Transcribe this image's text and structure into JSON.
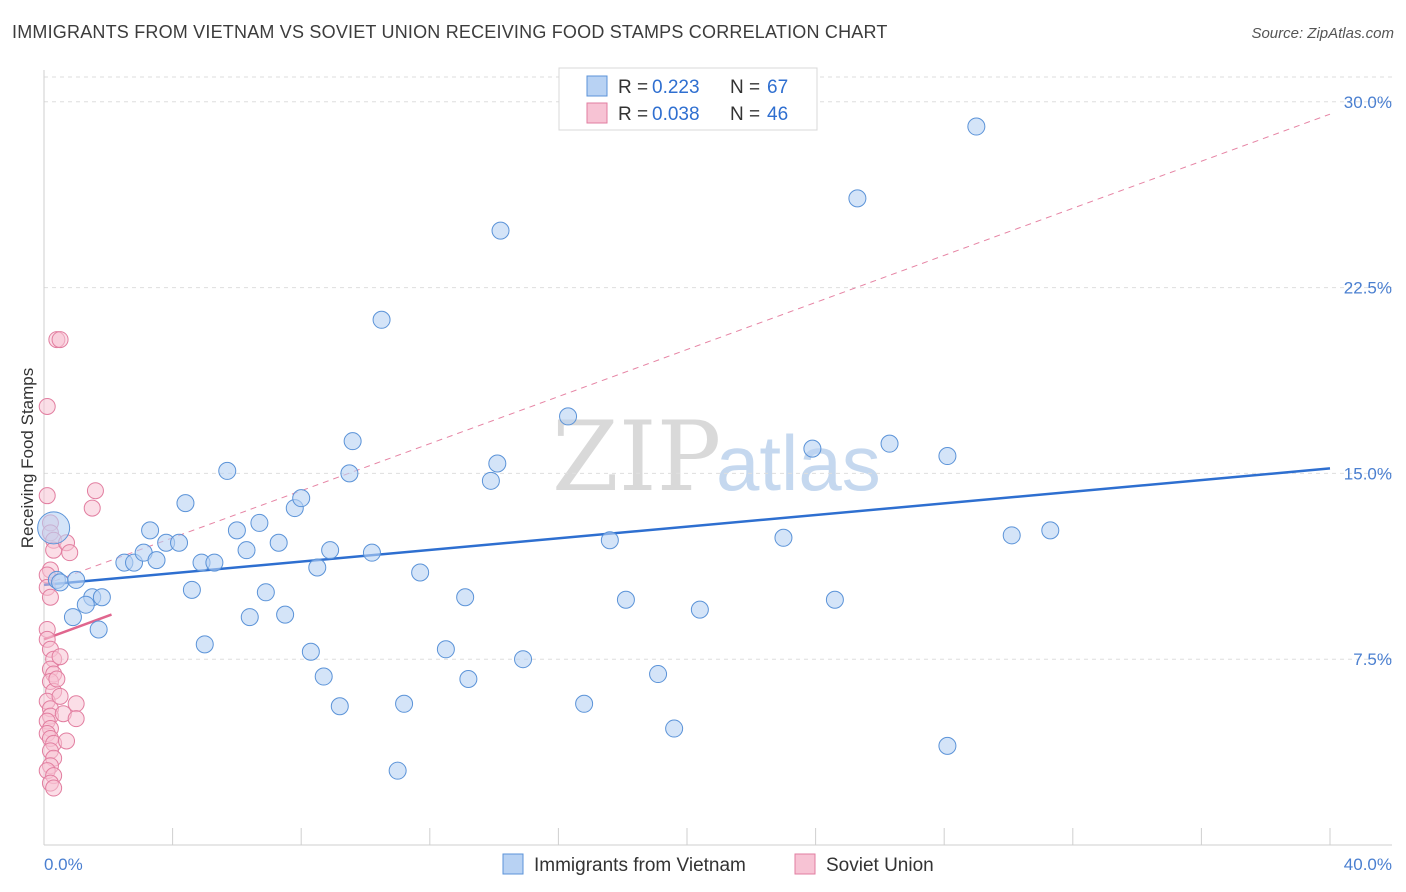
{
  "header": {
    "title": "IMMIGRANTS FROM VIETNAM VS SOVIET UNION RECEIVING FOOD STAMPS CORRELATION CHART",
    "source": "Source: ZipAtlas.com"
  },
  "watermark": {
    "zip": "ZIP",
    "atlas": "atlas"
  },
  "colors": {
    "blue_fill": "#b8d2f3",
    "blue_stroke": "#5b93d8",
    "blue_line": "#2e6fd0",
    "pink_fill": "#f7c3d4",
    "pink_stroke": "#e27ea0",
    "pink_line": "#e0668e"
  },
  "legend": {
    "rows": [
      {
        "r_label": "R = ",
        "r_value": "0.223",
        "n_label": "N = ",
        "n_value": "67"
      },
      {
        "r_label": "R = ",
        "r_value": "0.038",
        "n_label": "N = ",
        "n_value": "46"
      }
    ]
  },
  "chart_data": {
    "type": "scatter",
    "title": "IMMIGRANTS FROM VIETNAM VS SOVIET UNION RECEIVING FOOD STAMPS CORRELATION CHART",
    "xlabel": "",
    "ylabel": "Receiving Food Stamps",
    "xlim": [
      0,
      40
    ],
    "ylim": [
      0,
      31
    ],
    "x_tick_labels": [
      "0.0%",
      "40.0%"
    ],
    "y_ticks": [
      7.5,
      15.0,
      22.5,
      30.0
    ],
    "y_tick_labels": [
      "7.5%",
      "15.0%",
      "22.5%",
      "30.0%"
    ],
    "grid": true,
    "series": [
      {
        "name": "Immigrants from Vietnam",
        "r": 0.223,
        "n": 67,
        "trend": {
          "x": [
            0,
            40
          ],
          "y": [
            10.5,
            15.2
          ]
        },
        "points": [
          [
            0.3,
            12.8
          ],
          [
            0.4,
            10.7
          ],
          [
            0.5,
            10.6
          ],
          [
            1.0,
            10.7
          ],
          [
            1.5,
            10.0
          ],
          [
            0.9,
            9.2
          ],
          [
            1.8,
            10.0
          ],
          [
            1.7,
            8.7
          ],
          [
            1.3,
            9.7
          ],
          [
            2.5,
            11.4
          ],
          [
            2.8,
            11.4
          ],
          [
            3.1,
            11.8
          ],
          [
            3.3,
            12.7
          ],
          [
            3.5,
            11.5
          ],
          [
            3.8,
            12.2
          ],
          [
            4.2,
            12.2
          ],
          [
            4.4,
            13.8
          ],
          [
            4.6,
            10.3
          ],
          [
            4.9,
            11.4
          ],
          [
            5.0,
            8.1
          ],
          [
            5.3,
            11.4
          ],
          [
            5.7,
            15.1
          ],
          [
            6.0,
            12.7
          ],
          [
            6.3,
            11.9
          ],
          [
            6.4,
            9.2
          ],
          [
            6.7,
            13.0
          ],
          [
            6.9,
            10.2
          ],
          [
            7.3,
            12.2
          ],
          [
            7.5,
            9.3
          ],
          [
            7.8,
            13.6
          ],
          [
            8.0,
            14.0
          ],
          [
            8.3,
            7.8
          ],
          [
            8.5,
            11.2
          ],
          [
            8.7,
            6.8
          ],
          [
            8.9,
            11.9
          ],
          [
            9.2,
            5.6
          ],
          [
            9.5,
            15.0
          ],
          [
            9.6,
            16.3
          ],
          [
            10.2,
            11.8
          ],
          [
            10.5,
            21.2
          ],
          [
            11.0,
            3.0
          ],
          [
            11.2,
            5.7
          ],
          [
            11.7,
            11.0
          ],
          [
            12.5,
            7.9
          ],
          [
            13.1,
            10.0
          ],
          [
            13.2,
            6.7
          ],
          [
            13.9,
            14.7
          ],
          [
            14.1,
            15.4
          ],
          [
            14.2,
            24.8
          ],
          [
            14.9,
            7.5
          ],
          [
            16.3,
            17.3
          ],
          [
            16.8,
            5.7
          ],
          [
            17.6,
            12.3
          ],
          [
            18.1,
            9.9
          ],
          [
            19.1,
            6.9
          ],
          [
            19.6,
            4.7
          ],
          [
            20.4,
            9.5
          ],
          [
            23.0,
            12.4
          ],
          [
            23.9,
            16.0
          ],
          [
            24.6,
            9.9
          ],
          [
            25.3,
            26.1
          ],
          [
            26.3,
            16.2
          ],
          [
            28.1,
            15.7
          ],
          [
            28.1,
            4.0
          ],
          [
            29.0,
            29.0
          ],
          [
            30.1,
            12.5
          ],
          [
            31.3,
            12.7
          ]
        ]
      },
      {
        "name": "Soviet Union",
        "r": 0.038,
        "n": 46,
        "trend": {
          "x": [
            0,
            2.1
          ],
          "y": [
            8.3,
            9.3
          ]
        },
        "trend_dashed": {
          "x": [
            0,
            40
          ],
          "y": [
            10.5,
            29.5
          ]
        },
        "points": [
          [
            0.1,
            17.7
          ],
          [
            0.1,
            14.1
          ],
          [
            0.2,
            13.0
          ],
          [
            0.2,
            12.6
          ],
          [
            0.3,
            12.3
          ],
          [
            0.3,
            11.9
          ],
          [
            0.2,
            11.1
          ],
          [
            0.1,
            10.9
          ],
          [
            0.1,
            10.4
          ],
          [
            0.2,
            10.0
          ],
          [
            0.1,
            8.7
          ],
          [
            0.1,
            8.3
          ],
          [
            0.2,
            7.9
          ],
          [
            0.3,
            7.5
          ],
          [
            0.2,
            7.1
          ],
          [
            0.3,
            6.9
          ],
          [
            0.2,
            6.6
          ],
          [
            0.3,
            6.2
          ],
          [
            0.1,
            5.8
          ],
          [
            0.2,
            5.5
          ],
          [
            0.2,
            5.2
          ],
          [
            0.1,
            5.0
          ],
          [
            0.2,
            4.7
          ],
          [
            0.1,
            4.5
          ],
          [
            0.2,
            4.3
          ],
          [
            0.3,
            4.1
          ],
          [
            0.2,
            3.8
          ],
          [
            0.3,
            3.5
          ],
          [
            0.2,
            3.2
          ],
          [
            0.1,
            3.0
          ],
          [
            0.3,
            2.8
          ],
          [
            0.2,
            2.5
          ],
          [
            0.3,
            2.3
          ],
          [
            0.4,
            20.4
          ],
          [
            0.5,
            20.4
          ],
          [
            0.5,
            7.6
          ],
          [
            0.4,
            6.7
          ],
          [
            0.5,
            6.0
          ],
          [
            0.6,
            5.3
          ],
          [
            0.7,
            12.2
          ],
          [
            0.8,
            11.8
          ],
          [
            0.7,
            4.2
          ],
          [
            1.0,
            5.7
          ],
          [
            1.0,
            5.1
          ],
          [
            1.5,
            13.6
          ],
          [
            1.6,
            14.3
          ]
        ]
      }
    ]
  }
}
